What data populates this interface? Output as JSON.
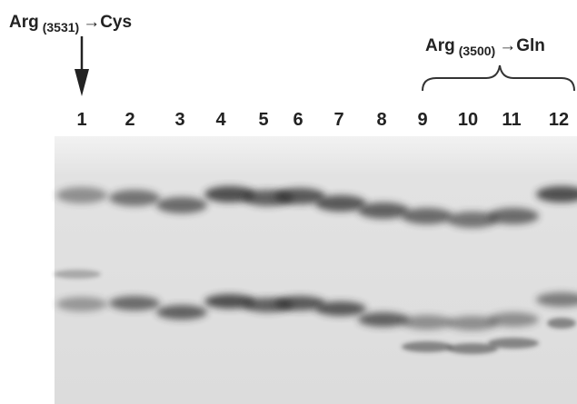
{
  "annotations": [
    {
      "text": "Arg",
      "subscript": "(3531)",
      "suffix": "→Cys"
    },
    {
      "text": "Arg",
      "subscript": "(3500)",
      "suffix": "→Gln"
    }
  ],
  "lanes": [
    "1",
    "2",
    "3",
    "4",
    "5",
    "6",
    "7",
    "8",
    "9",
    "10",
    "11",
    "12"
  ]
}
